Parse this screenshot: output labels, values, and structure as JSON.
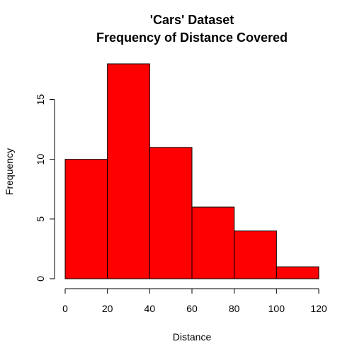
{
  "chart_data": {
    "type": "bar",
    "title": [
      "'Cars' Dataset",
      "Frequency of Distance Covered"
    ],
    "xlabel": "Distance",
    "ylabel": "Frequency",
    "bins": [
      {
        "from": 0,
        "to": 20,
        "count": 10
      },
      {
        "from": 20,
        "to": 40,
        "count": 18
      },
      {
        "from": 40,
        "to": 60,
        "count": 11
      },
      {
        "from": 60,
        "to": 80,
        "count": 6
      },
      {
        "from": 80,
        "to": 100,
        "count": 4
      },
      {
        "from": 100,
        "to": 120,
        "count": 1
      }
    ],
    "xlim": [
      0,
      120
    ],
    "ylim": [
      0,
      18
    ],
    "x_ticks": [
      "0",
      "20",
      "40",
      "60",
      "80",
      "100",
      "120"
    ],
    "y_ticks": [
      "0",
      "5",
      "10",
      "15"
    ],
    "bar_color": "#ff0000",
    "border_color": "#000000",
    "grid": false,
    "legend": "none"
  }
}
